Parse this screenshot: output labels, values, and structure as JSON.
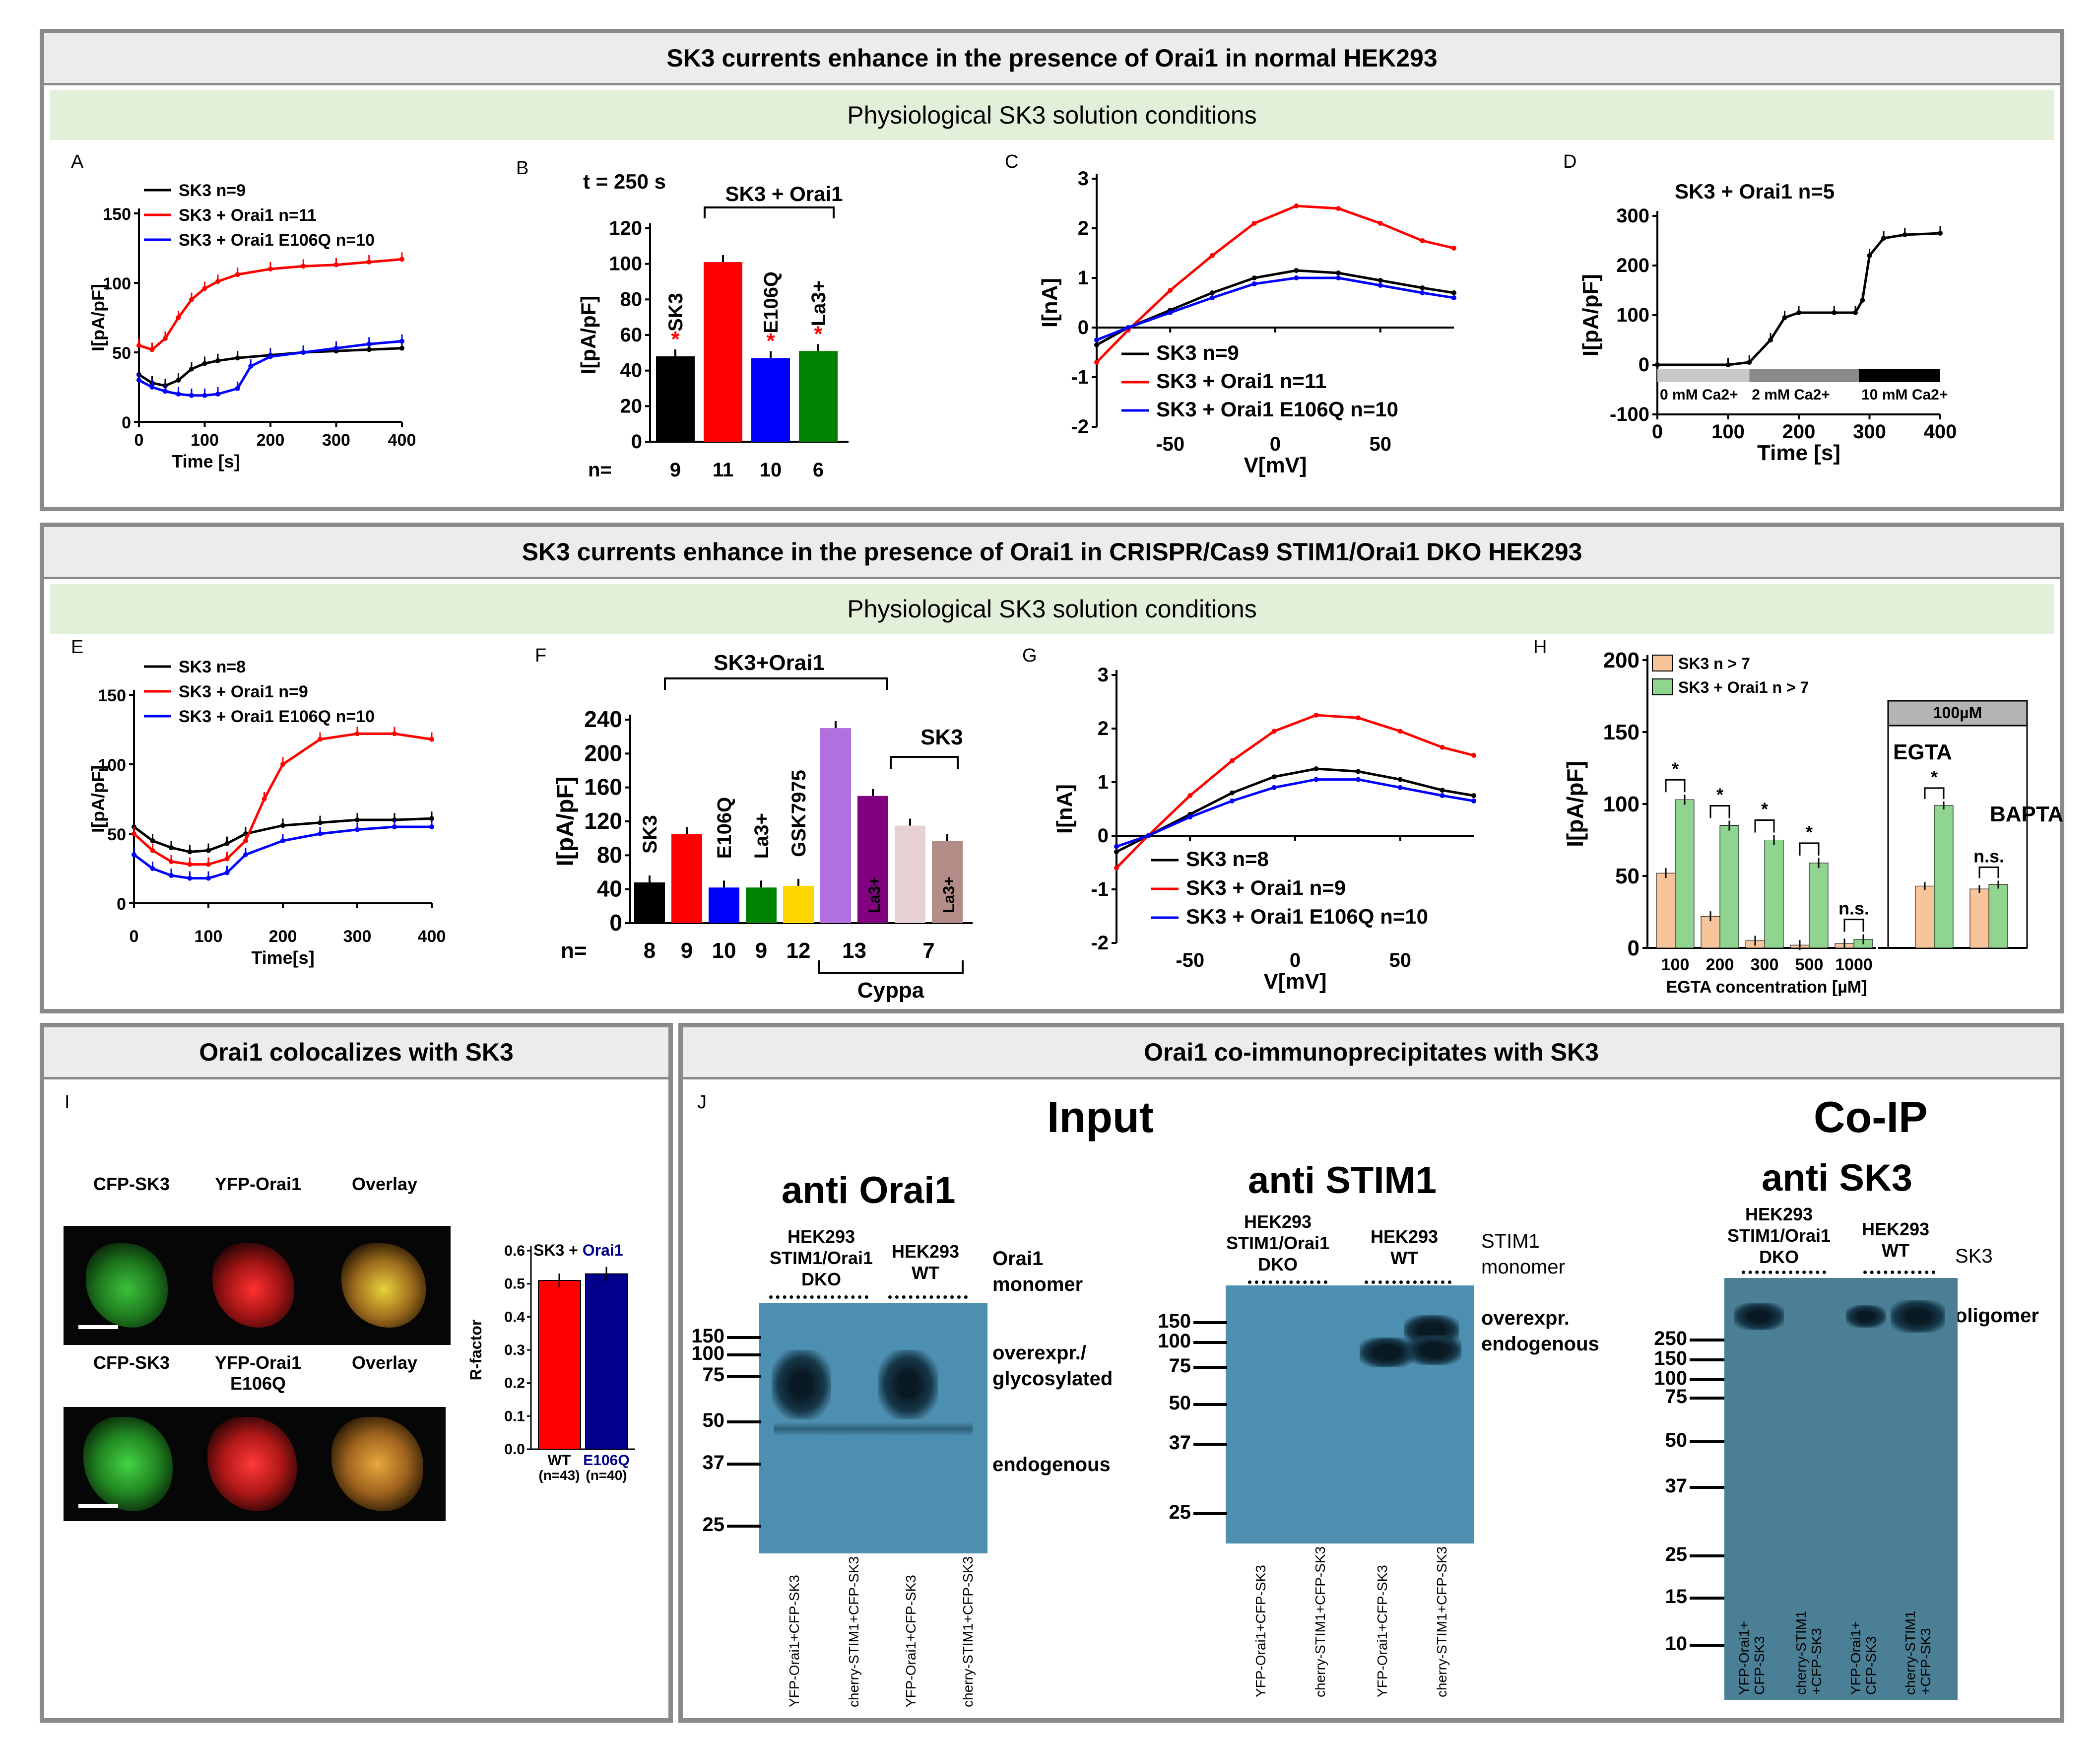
{
  "sections": {
    "top": {
      "title": "SK3 currents enhance in the presence of Orai1 in normal HEK293",
      "subtitle": "Physiological SK3 solution conditions"
    },
    "middle": {
      "title": "SK3 currents enhance in the presence of Orai1 in CRISPR/Cas9 STIM1/Orai1 DKO HEK293",
      "subtitle": "Physiological SK3 solution conditions"
    },
    "bottom_left": {
      "title": "Orai1 colocalizes with SK3"
    },
    "bottom_right": {
      "title": "Orai1 co-immunoprecipitates with SK3"
    }
  },
  "panel_letters": {
    "A": "A",
    "B": "B",
    "C": "C",
    "D": "D",
    "E": "E",
    "F": "F",
    "G": "G",
    "H": "H",
    "I": "I",
    "J": "J"
  },
  "colors": {
    "sk3": "#000000",
    "orai1": "#ff0000",
    "e106q": "#0000ff",
    "la": "#008000",
    "gsk": "#ffd700",
    "gsk7975": "#b070e0",
    "cyppa_la": "#800080",
    "cyppa_sk3": "#e6d2d2",
    "cyppa_sk3_la": "#b48c87",
    "h_sk3": "#f8c49a",
    "h_orai1": "#8fd48f",
    "blot": "#4d8fb0",
    "r_wt": "#ff0000",
    "r_e106q": "#00008b"
  },
  "chart_data": [
    {
      "id": "A",
      "type": "line",
      "xlabel": "Time [s]",
      "ylabel": "I[pA/pF]",
      "xlim": [
        0,
        400
      ],
      "ylim": [
        0,
        150
      ],
      "xticks": [
        "0",
        "100",
        "200",
        "300",
        "400"
      ],
      "yticks": [
        "0",
        "50",
        "100",
        "150"
      ],
      "legend": [
        "SK3 n=9",
        "SK3 + Orai1 n=11",
        "SK3 + Orai1 E106Q n=10"
      ],
      "series": [
        {
          "name": "SK3 n=9",
          "x": [
            0,
            20,
            40,
            60,
            80,
            100,
            120,
            150,
            200,
            250,
            300,
            350,
            400
          ],
          "y": [
            34,
            28,
            26,
            30,
            38,
            42,
            44,
            46,
            48,
            50,
            51,
            52,
            53
          ]
        },
        {
          "name": "SK3 + Orai1 n=11",
          "x": [
            0,
            20,
            40,
            60,
            80,
            100,
            120,
            150,
            200,
            250,
            300,
            350,
            400
          ],
          "y": [
            55,
            52,
            60,
            75,
            88,
            96,
            101,
            106,
            110,
            112,
            113,
            115,
            117
          ]
        },
        {
          "name": "SK3 + Orai1 E106Q n=10",
          "x": [
            0,
            20,
            40,
            60,
            80,
            100,
            120,
            150,
            170,
            200,
            250,
            300,
            350,
            400
          ],
          "y": [
            30,
            25,
            22,
            20,
            19,
            19,
            20,
            24,
            40,
            47,
            50,
            53,
            56,
            58
          ]
        }
      ]
    },
    {
      "id": "B",
      "type": "bar",
      "title": "t = 250 s",
      "bracket": "SK3 + Orai1",
      "ylabel": "I[pA/pF]",
      "ylim": [
        0,
        120
      ],
      "yticks": [
        "0",
        "20",
        "40",
        "60",
        "80",
        "100",
        "120"
      ],
      "categories": [
        "SK3",
        "",
        "E106Q",
        "La3+"
      ],
      "values": [
        48,
        101,
        47,
        51
      ],
      "n_label": "n=",
      "n": [
        "9",
        "11",
        "10",
        "6"
      ]
    },
    {
      "id": "C",
      "type": "line",
      "xlabel": "V[mV]",
      "ylabel": "I[nA]",
      "xlim": [
        -85,
        85
      ],
      "ylim": [
        -2,
        3
      ],
      "xticks": [
        "-50",
        "0",
        "50"
      ],
      "yticks": [
        "-2",
        "-1",
        "0",
        "1",
        "2",
        "3"
      ],
      "legend": [
        "SK3 n=9",
        "SK3 + Orai1 n=11",
        "SK3 + Orai1 E106Q n=10"
      ],
      "series": [
        {
          "name": "SK3 n=9",
          "x": [
            -85,
            -70,
            -50,
            -30,
            -10,
            10,
            30,
            50,
            70,
            85
          ],
          "y": [
            -0.35,
            0.0,
            0.35,
            0.7,
            1.0,
            1.15,
            1.1,
            0.95,
            0.8,
            0.7
          ]
        },
        {
          "name": "SK3 + Orai1 n=11",
          "x": [
            -85,
            -70,
            -50,
            -30,
            -10,
            10,
            30,
            50,
            70,
            85
          ],
          "y": [
            -0.7,
            -0.05,
            0.75,
            1.45,
            2.1,
            2.45,
            2.4,
            2.1,
            1.75,
            1.6
          ]
        },
        {
          "name": "SK3 + Orai1 E106Q n=10",
          "x": [
            -85,
            -70,
            -50,
            -30,
            -10,
            10,
            30,
            50,
            70,
            85
          ],
          "y": [
            -0.25,
            0.0,
            0.3,
            0.6,
            0.88,
            1.0,
            1.0,
            0.85,
            0.7,
            0.6
          ]
        }
      ]
    },
    {
      "id": "D",
      "type": "line",
      "title": "SK3 + Orai1 n=5",
      "xlabel": "Time [s]",
      "ylabel": "I[pA/pF]",
      "xlim": [
        0,
        400
      ],
      "ylim": [
        -100,
        300
      ],
      "xticks": [
        "0",
        "100",
        "200",
        "300",
        "400"
      ],
      "yticks": [
        "-100",
        "0",
        "100",
        "200",
        "300"
      ],
      "ca_bar": [
        "0 mM Ca2+",
        "2 mM Ca2+",
        "10 mM Ca2+"
      ],
      "series": [
        {
          "name": "SK3 + Orai1 n=5",
          "x": [
            0,
            100,
            130,
            160,
            180,
            200,
            250,
            280,
            290,
            300,
            320,
            350,
            400
          ],
          "y": [
            0,
            0,
            5,
            50,
            95,
            105,
            105,
            105,
            130,
            220,
            255,
            262,
            265
          ]
        }
      ]
    },
    {
      "id": "E",
      "type": "line",
      "xlabel": "Time[s]",
      "ylabel": "I[pA/pF]",
      "xlim": [
        0,
        400
      ],
      "ylim": [
        0,
        150
      ],
      "xticks": [
        "0",
        "100",
        "200",
        "300",
        "400"
      ],
      "yticks": [
        "0",
        "50",
        "100",
        "150"
      ],
      "legend": [
        "SK3 n=8",
        "SK3 + Orai1 n=9",
        "SK3 + Orai1 E106Q n=10"
      ],
      "series": [
        {
          "name": "SK3 n=8",
          "x": [
            0,
            25,
            50,
            75,
            100,
            125,
            150,
            200,
            250,
            300,
            350,
            400
          ],
          "y": [
            55,
            45,
            40,
            37,
            38,
            43,
            50,
            56,
            58,
            60,
            60,
            61
          ]
        },
        {
          "name": "SK3 + Orai1 n=9",
          "x": [
            0,
            25,
            50,
            75,
            100,
            125,
            150,
            175,
            200,
            250,
            300,
            350,
            400
          ],
          "y": [
            50,
            38,
            30,
            28,
            28,
            32,
            45,
            75,
            100,
            118,
            122,
            122,
            118
          ]
        },
        {
          "name": "SK3 + Orai1 E106Q n=10",
          "x": [
            0,
            25,
            50,
            75,
            100,
            125,
            150,
            200,
            250,
            300,
            350,
            400
          ],
          "y": [
            35,
            25,
            20,
            18,
            18,
            22,
            35,
            45,
            50,
            53,
            55,
            55
          ]
        }
      ]
    },
    {
      "id": "F",
      "type": "bar",
      "bracket_top": "SK3+Orai1",
      "bracket_right": "SK3",
      "bracket_bottom": "Cyppa",
      "ylabel": "I[pA/pF]",
      "ylim": [
        0,
        240
      ],
      "yticks": [
        "0",
        "40",
        "80",
        "120",
        "160",
        "200",
        "240"
      ],
      "categories": [
        "SK3",
        "",
        "E106Q",
        "La3+",
        "GSK7975",
        "",
        "La3+",
        "",
        "La3+"
      ],
      "values": [
        48,
        105,
        42,
        42,
        44,
        230,
        150,
        115,
        97
      ],
      "n_label": "n=",
      "n": [
        "8",
        "9",
        "10",
        "9",
        "12",
        "13",
        "7"
      ]
    },
    {
      "id": "G",
      "type": "line",
      "xlabel": "V[mV]",
      "ylabel": "I[nA]",
      "xlim": [
        -85,
        85
      ],
      "ylim": [
        -2,
        3
      ],
      "xticks": [
        "-50",
        "0",
        "50"
      ],
      "yticks": [
        "-2",
        "-1",
        "0",
        "1",
        "2",
        "3"
      ],
      "legend": [
        "SK3 n=8",
        "SK3 + Orai1 n=9",
        "SK3 + Orai1 E106Q n=10"
      ],
      "series": [
        {
          "name": "SK3 n=8",
          "x": [
            -85,
            -70,
            -50,
            -30,
            -10,
            10,
            30,
            50,
            70,
            85
          ],
          "y": [
            -0.3,
            0.0,
            0.4,
            0.8,
            1.1,
            1.25,
            1.2,
            1.05,
            0.85,
            0.75
          ]
        },
        {
          "name": "SK3 + Orai1 n=9",
          "x": [
            -85,
            -70,
            -50,
            -30,
            -10,
            10,
            30,
            50,
            70,
            85
          ],
          "y": [
            -0.6,
            0.0,
            0.75,
            1.4,
            1.95,
            2.25,
            2.2,
            1.95,
            1.65,
            1.5
          ]
        },
        {
          "name": "SK3 + Orai1 E106Q n=10",
          "x": [
            -85,
            -70,
            -50,
            -30,
            -10,
            10,
            30,
            50,
            70,
            85
          ],
          "y": [
            -0.2,
            0.0,
            0.35,
            0.65,
            0.9,
            1.05,
            1.05,
            0.9,
            0.75,
            0.65
          ]
        }
      ]
    },
    {
      "id": "H",
      "type": "bar",
      "xlabel": "EGTA concentration [µM]",
      "ylabel": "I[pA/pF]",
      "ylim": [
        0,
        200
      ],
      "yticks": [
        "0",
        "50",
        "100",
        "150",
        "200"
      ],
      "legend": [
        "SK3 n > 7",
        "SK3 + Orai1 n > 7"
      ],
      "categories": [
        "100",
        "200",
        "300",
        "500",
        "1000"
      ],
      "series": [
        {
          "name": "SK3 n > 7",
          "values": [
            52,
            22,
            5,
            2,
            3
          ]
        },
        {
          "name": "SK3 + Orai1 n > 7",
          "values": [
            103,
            85,
            75,
            59,
            6
          ]
        }
      ],
      "significance": [
        "*",
        "*",
        "*",
        "*",
        "n.s."
      ],
      "inset": {
        "header": "100µM",
        "categories": [
          "EGTA",
          "BAPTA"
        ],
        "series": [
          {
            "name": "SK3 n > 7",
            "values": [
              43,
              41
            ]
          },
          {
            "name": "SK3 + Orai1 n > 7",
            "values": [
              99,
              44
            ]
          }
        ],
        "significance": [
          "*",
          "n.s."
        ]
      }
    },
    {
      "id": "I",
      "type": "bar",
      "title": "SK3 + Orai1",
      "ylabel": "R-factor",
      "ylim": [
        0,
        0.6
      ],
      "yticks": [
        "0.0",
        "0.1",
        "0.2",
        "0.3",
        "0.4",
        "0.5",
        "0.6"
      ],
      "categories": [
        "WT",
        "E106Q"
      ],
      "n": [
        "(n=43)",
        "(n=40)"
      ],
      "values": [
        0.51,
        0.53
      ]
    }
  ],
  "panel_I": {
    "row1": [
      "CFP-SK3",
      "YFP-Orai1",
      "Overlay"
    ],
    "row2": [
      "CFP-SK3",
      "YFP-Orai1\nE106Q",
      "Overlay"
    ]
  },
  "panel_J": {
    "input_title": "Input",
    "coip_title": "Co-IP",
    "blot1": {
      "antibody": "anti Orai1",
      "group1": "HEK293\nSTIM1/Orai1\nDKO",
      "group2": "HEK293\nWT",
      "labels": [
        "Orai1\nmonomer",
        "overexpr./\nglycosylated",
        "endogenous"
      ],
      "mw": [
        "150",
        "100",
        "75",
        "50",
        "37",
        "25"
      ],
      "lanes": [
        "YFP-Orai1+CFP-SK3",
        "cherry-STIM1+CFP-SK3",
        "YFP-Orai1+CFP-SK3",
        "cherry-STIM1+CFP-SK3"
      ]
    },
    "blot2": {
      "antibody": "anti STIM1",
      "group1": "HEK293\nSTIM1/Orai1\nDKO",
      "group2": "HEK293\nWT",
      "labels": [
        "STIM1\nmonomer",
        "overexpr.\nendogenous"
      ],
      "mw": [
        "150",
        "100",
        "75",
        "50",
        "37",
        "25"
      ],
      "lanes": [
        "YFP-Orai1+CFP-SK3",
        "cherry-STIM1+CFP-SK3",
        "YFP-Orai1+CFP-SK3",
        "cherry-STIM1+CFP-SK3"
      ]
    },
    "blot3": {
      "antibody": "anti SK3",
      "group1": "HEK293\nSTIM1/Orai1\nDKO",
      "group2": "HEK293\nWT",
      "labels": [
        "SK3",
        "oligomer"
      ],
      "mw": [
        "250",
        "150",
        "100",
        "75",
        "50",
        "37",
        "25",
        "15",
        "10"
      ],
      "lanes": [
        "YFP-Orai1+\nCFP-SK3",
        "cherry-STIM1\n+CFP-SK3",
        "YFP-Orai1+\nCFP-SK3",
        "cherry-STIM1\n+CFP-SK3"
      ]
    }
  }
}
